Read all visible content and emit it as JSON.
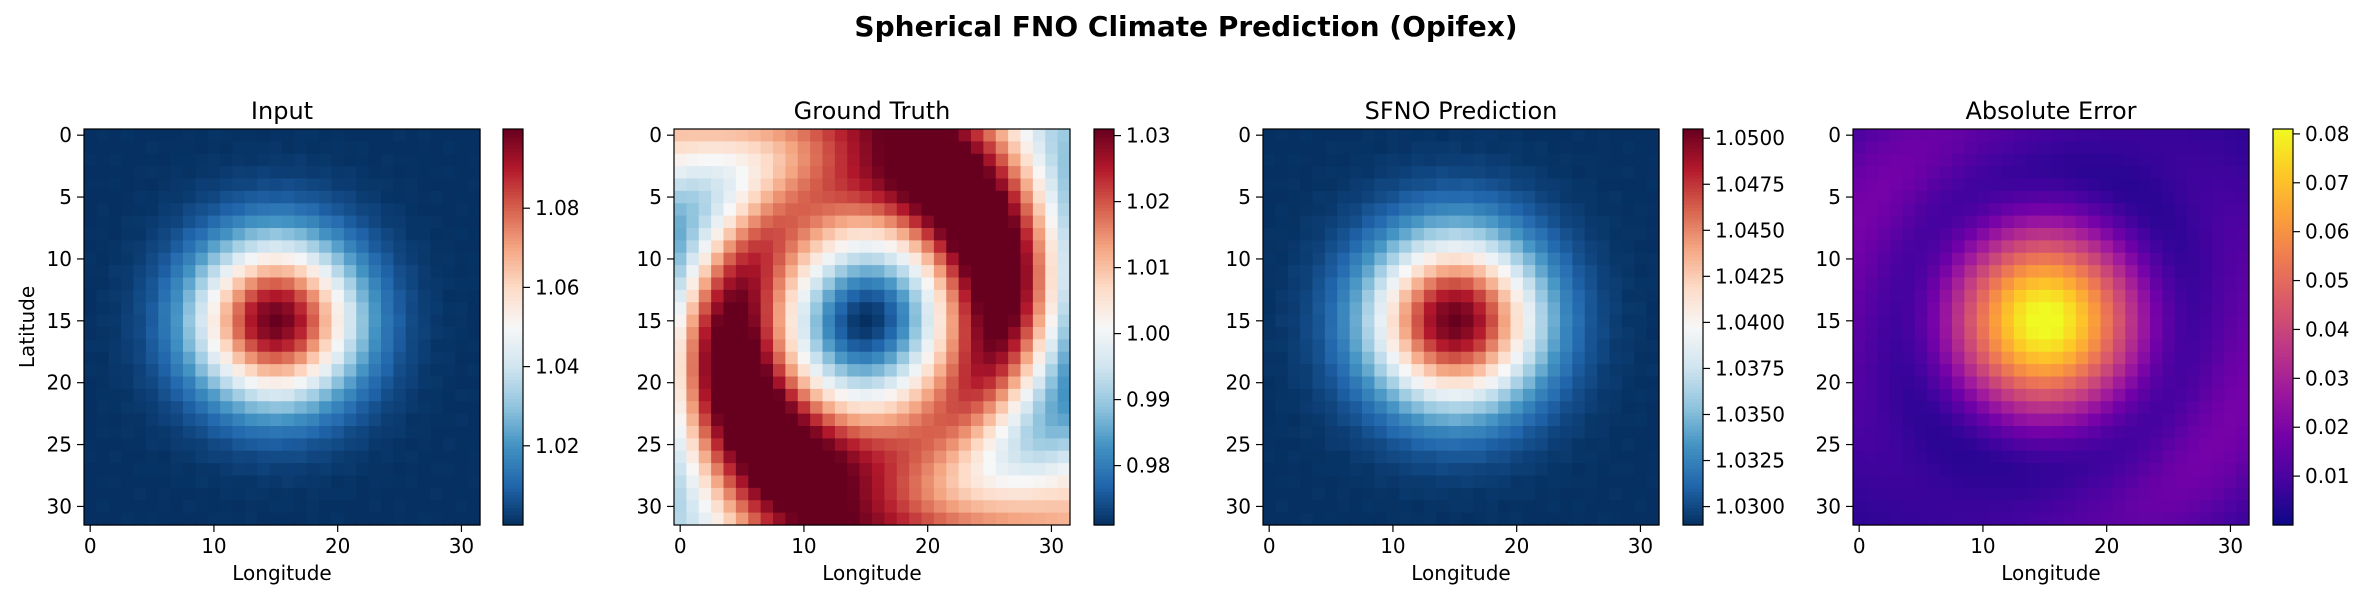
{
  "figure": {
    "title": "Spherical FNO Climate Prediction (Opifex)"
  },
  "chart_data": [
    {
      "type": "heatmap",
      "title": "Input",
      "xlabel": "Longitude",
      "ylabel": "Latitude",
      "grid_size": [
        32,
        32
      ],
      "x_ticks": [
        0,
        10,
        20,
        30
      ],
      "y_ticks": [
        0,
        5,
        10,
        15,
        20,
        25,
        30
      ],
      "colormap": "RdBu_r",
      "vmin": 1.0,
      "vmax": 1.1,
      "colorbar_ticks": [
        1.02,
        1.04,
        1.06,
        1.08
      ],
      "colorbar_tick_labels": [
        "1.02",
        "1.04",
        "1.06",
        "1.08"
      ],
      "field": {
        "kind": "gaussian_blob",
        "center": [
          15,
          15
        ],
        "sigma": 4.5,
        "base": 1.0,
        "peak": 1.1
      }
    },
    {
      "type": "heatmap",
      "title": "Ground Truth",
      "xlabel": "Longitude",
      "ylabel": "",
      "grid_size": [
        32,
        32
      ],
      "x_ticks": [
        0,
        10,
        20,
        30
      ],
      "y_ticks": [
        0,
        5,
        10,
        15,
        20,
        25,
        30
      ],
      "colormap": "RdBu_r",
      "vmin": 0.971,
      "vmax": 1.031,
      "colorbar_ticks": [
        0.98,
        0.99,
        1.0,
        1.01,
        1.02,
        1.03
      ],
      "colorbar_tick_labels": [
        "0.98",
        "0.99",
        "1.00",
        "1.01",
        "1.02",
        "1.03"
      ],
      "field": {
        "kind": "inverted_blob_with_ring",
        "center": [
          15,
          15
        ],
        "min": 0.971,
        "max": 1.031
      }
    },
    {
      "type": "heatmap",
      "title": "SFNO Prediction",
      "xlabel": "Longitude",
      "ylabel": "",
      "grid_size": [
        32,
        32
      ],
      "x_ticks": [
        0,
        10,
        20,
        30
      ],
      "y_ticks": [
        0,
        5,
        10,
        15,
        20,
        25,
        30
      ],
      "colormap": "RdBu_r",
      "vmin": 1.029,
      "vmax": 1.0505,
      "colorbar_ticks": [
        1.03,
        1.0325,
        1.035,
        1.0375,
        1.04,
        1.0425,
        1.045,
        1.0475,
        1.05
      ],
      "colorbar_tick_labels": [
        "1.0300",
        "1.0325",
        "1.0350",
        "1.0375",
        "1.0400",
        "1.0425",
        "1.0450",
        "1.0475",
        "1.0500"
      ],
      "field": {
        "kind": "gaussian_blob",
        "center": [
          15,
          15
        ],
        "sigma": 4.8,
        "base": 1.029,
        "peak": 1.0505
      }
    },
    {
      "type": "heatmap",
      "title": "Absolute Error",
      "xlabel": "Longitude",
      "ylabel": "",
      "grid_size": [
        32,
        32
      ],
      "x_ticks": [
        0,
        10,
        20,
        30
      ],
      "y_ticks": [
        0,
        5,
        10,
        15,
        20,
        25,
        30
      ],
      "colormap": "plasma",
      "vmin": 0.0,
      "vmax": 0.081,
      "colorbar_ticks": [
        0.01,
        0.02,
        0.03,
        0.04,
        0.05,
        0.06,
        0.07,
        0.08
      ],
      "colorbar_tick_labels": [
        "0.01",
        "0.02",
        "0.03",
        "0.04",
        "0.05",
        "0.06",
        "0.07",
        "0.08"
      ],
      "field": {
        "kind": "error_blob",
        "center": [
          15,
          15
        ],
        "min": 0.0,
        "max": 0.081
      }
    }
  ]
}
